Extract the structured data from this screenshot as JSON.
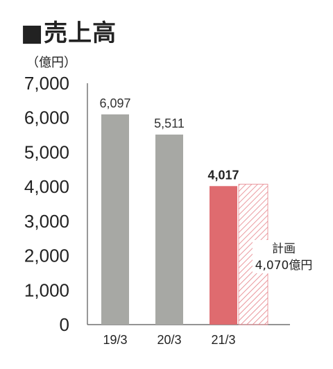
{
  "title": "■売上高",
  "unit_label": "（億円）",
  "colors": {
    "bar": "#a7a8a4",
    "highlight": "#df6b6f",
    "plan": "#e57f86",
    "axis": "#555555"
  },
  "chart_data": {
    "type": "bar",
    "title": "■売上高",
    "ylabel": "（億円）",
    "xlabel": "",
    "ylim": [
      0,
      7000
    ],
    "yticks": [
      0,
      1000,
      2000,
      3000,
      4000,
      5000,
      6000,
      7000
    ],
    "ytick_labels": [
      "0",
      "1,000",
      "2,000",
      "3,000",
      "4,000",
      "5,000",
      "6,000",
      "7,000"
    ],
    "categories": [
      "19/3",
      "20/3",
      "21/3"
    ],
    "values": [
      6097,
      5511,
      4017
    ],
    "value_labels": [
      "6,097",
      "5,511",
      "4,017"
    ],
    "highlight_index": 2,
    "plan": {
      "category": "21/3",
      "value": 4070,
      "label_line1": "計画",
      "label_line2": "4,070億円"
    },
    "grid": false
  }
}
